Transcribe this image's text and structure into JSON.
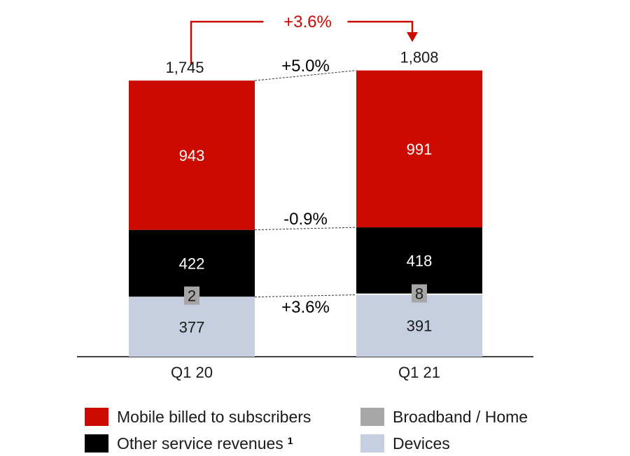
{
  "chart_data": {
    "type": "bar",
    "stacked": true,
    "title": "",
    "xlabel": "",
    "ylabel": "",
    "categories": [
      "Q1 20",
      "Q1 21"
    ],
    "totals": [
      "1,745",
      "1,808"
    ],
    "series": [
      {
        "name": "Devices",
        "color": "#c5cfe0",
        "text_color": "#1a1a1a",
        "values": [
          377,
          391
        ]
      },
      {
        "name": "Broadband / Home",
        "color": "#a6a6a6",
        "text_color": "#1a1a1a",
        "values": [
          2,
          8
        ]
      },
      {
        "name": "Other service revenues",
        "footnote": "1",
        "color": "#000000",
        "text_color": "#ffffff",
        "values": [
          422,
          418
        ]
      },
      {
        "name": "Mobile billed to subscribers",
        "color": "#cc0a00",
        "text_color": "#ffffff",
        "values": [
          943,
          991
        ]
      }
    ],
    "segment_changes": [
      {
        "label": "+5.0%",
        "between": "Mobile billed to subscribers"
      },
      {
        "label": "-0.9%",
        "between": "Other service revenues"
      },
      {
        "label": "+3.6%",
        "between": "Devices"
      }
    ],
    "total_change": {
      "label": "+3.6%",
      "color": "#cc0a00"
    }
  },
  "legend": {
    "items": [
      {
        "label": "Mobile billed to subscribers",
        "color": "#cc0a00",
        "footnote": ""
      },
      {
        "label": "Other service revenues",
        "color": "#000000",
        "footnote": "1"
      },
      {
        "label": "Broadband / Home",
        "color": "#a6a6a6",
        "footnote": ""
      },
      {
        "label": "Devices",
        "color": "#c5cfe0",
        "footnote": ""
      }
    ]
  }
}
